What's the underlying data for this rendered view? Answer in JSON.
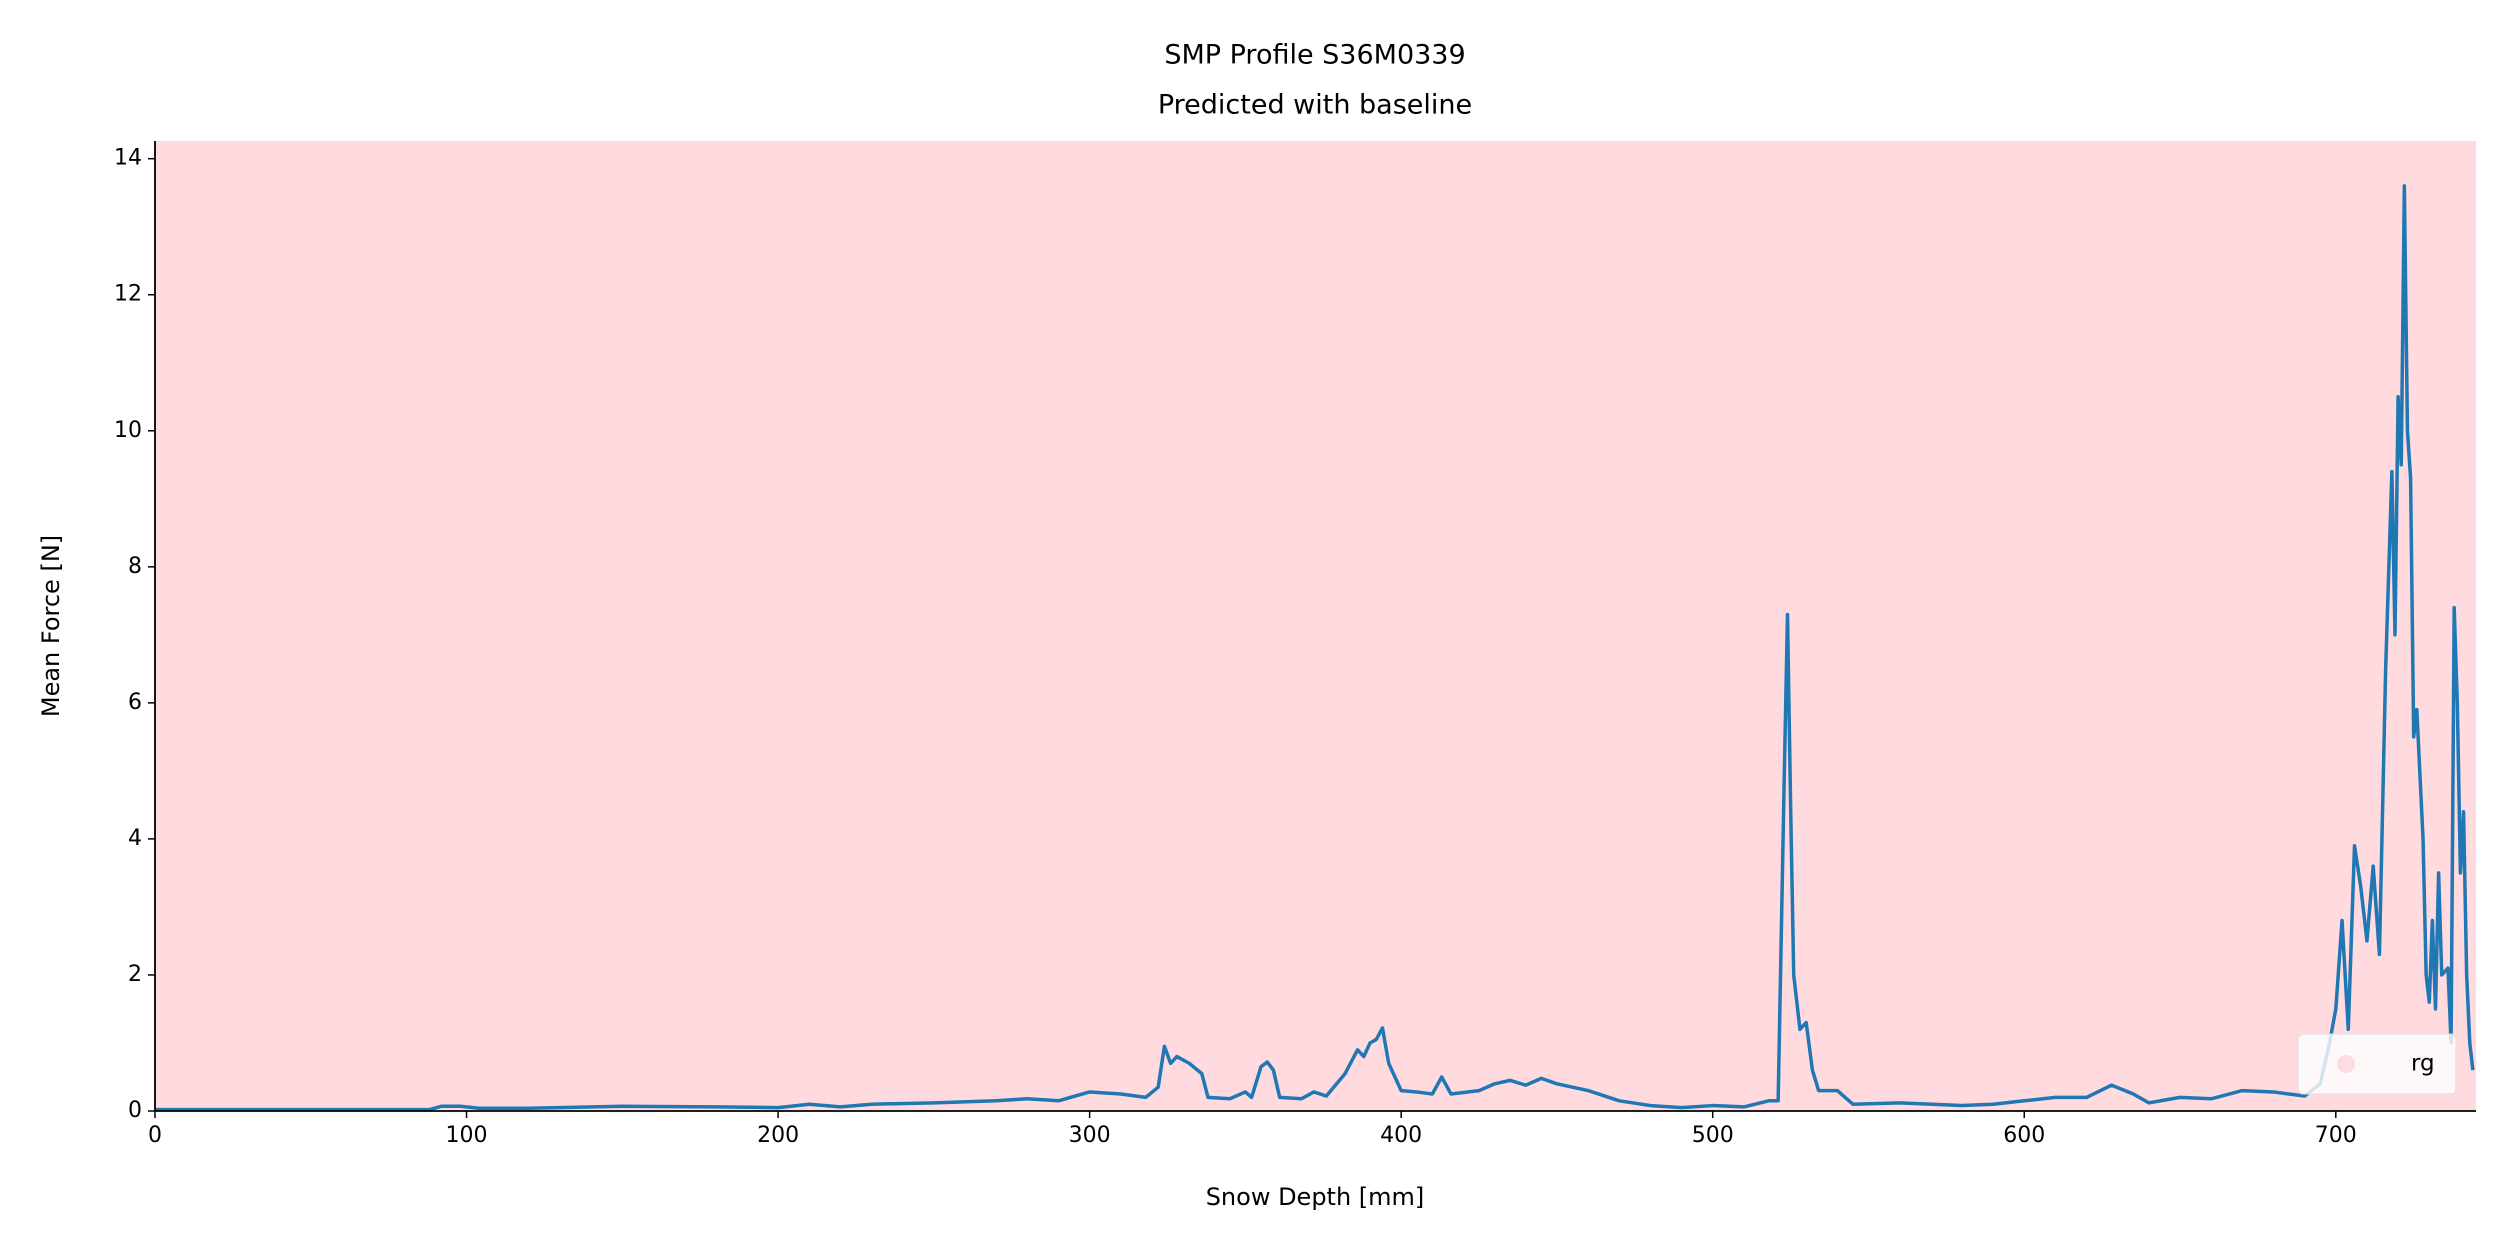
{
  "chart_data": {
    "type": "line",
    "title": "SMP Profile S36M0339",
    "subtitle": "Predicted with baseline",
    "x_label": "Snow Depth [mm]",
    "y_label": "Mean Force [N]",
    "background": {
      "name": "rg",
      "color": "#ffdbe0"
    },
    "legend": "lower right",
    "xlim": [
      0,
      745
    ],
    "xticks": [
      0,
      100,
      200,
      300,
      400,
      500,
      600,
      700
    ],
    "ylim": [
      0,
      14.26
    ],
    "yticks": [
      0,
      2,
      4,
      6,
      8,
      10,
      12,
      14
    ],
    "x": [
      0,
      50,
      88,
      92,
      98,
      104,
      120,
      150,
      180,
      200,
      210,
      220,
      230,
      250,
      270,
      280,
      290,
      300,
      310,
      318,
      322,
      324,
      326,
      328,
      332,
      336,
      338,
      345,
      350,
      352,
      355,
      357,
      359,
      361,
      368,
      372,
      376,
      382,
      386,
      388,
      390,
      392,
      394,
      396,
      400,
      405,
      410,
      413,
      416,
      425,
      430,
      435,
      440,
      445,
      450,
      460,
      470,
      480,
      490,
      500,
      510,
      518,
      521,
      523,
      524,
      525,
      526,
      528,
      530,
      532,
      534,
      540,
      545,
      560,
      580,
      590,
      600,
      610,
      620,
      628,
      635,
      640,
      650,
      660,
      670,
      680,
      690,
      695,
      698,
      700,
      702,
      704,
      706,
      708,
      710,
      712,
      714,
      716,
      718,
      719,
      720,
      721,
      722,
      723,
      724,
      725,
      726,
      728,
      729,
      730,
      731,
      732,
      733,
      734,
      736,
      737,
      738,
      739,
      740,
      741,
      742,
      743,
      744
    ],
    "series": [
      {
        "color": "#1f77b4",
        "values": [
          0.02,
          0.02,
          0.02,
          0.07,
          0.07,
          0.04,
          0.04,
          0.07,
          0.06,
          0.05,
          0.1,
          0.06,
          0.1,
          0.12,
          0.15,
          0.18,
          0.15,
          0.28,
          0.25,
          0.2,
          0.35,
          0.95,
          0.7,
          0.8,
          0.7,
          0.55,
          0.2,
          0.18,
          0.28,
          0.2,
          0.65,
          0.72,
          0.6,
          0.2,
          0.18,
          0.28,
          0.22,
          0.55,
          0.9,
          0.8,
          1.0,
          1.05,
          1.22,
          0.7,
          0.3,
          0.28,
          0.25,
          0.5,
          0.25,
          0.3,
          0.4,
          0.45,
          0.38,
          0.48,
          0.4,
          0.3,
          0.15,
          0.08,
          0.05,
          0.08,
          0.06,
          0.15,
          0.15,
          5.0,
          7.3,
          4.5,
          2.0,
          1.2,
          1.3,
          0.6,
          0.3,
          0.3,
          0.1,
          0.12,
          0.08,
          0.1,
          0.15,
          0.2,
          0.2,
          0.38,
          0.25,
          0.12,
          0.2,
          0.18,
          0.3,
          0.28,
          0.22,
          0.4,
          1.0,
          1.5,
          2.8,
          1.2,
          3.9,
          3.3,
          2.5,
          3.6,
          2.3,
          6.5,
          9.4,
          7.0,
          10.5,
          9.5,
          13.6,
          10.0,
          9.3,
          5.5,
          5.9,
          4.0,
          2.0,
          1.6,
          2.8,
          1.5,
          3.5,
          2.0,
          2.1,
          1.0,
          7.4,
          6.0,
          3.5,
          4.4,
          2.0,
          1.0,
          0.6
        ]
      }
    ]
  }
}
